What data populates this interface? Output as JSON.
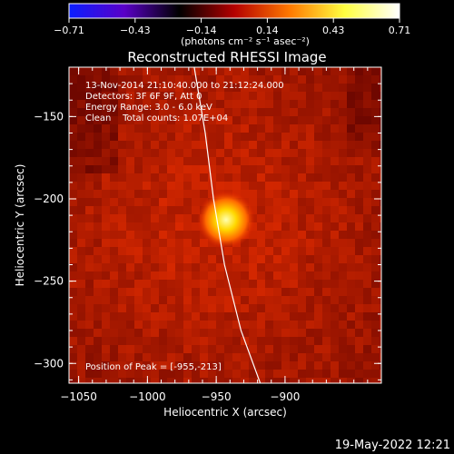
{
  "chart_data": {
    "type": "heatmap",
    "title": "Reconstructed RHESSI Image",
    "xlabel": "Heliocentric X (arcsec)",
    "ylabel": "Heliocentric Y (arcsec)",
    "xlim": [
      -1057,
      -830
    ],
    "ylim": [
      -312,
      -120
    ],
    "x_ticks": [
      {
        "value": -1050,
        "label": "−1050"
      },
      {
        "value": -1000,
        "label": "−1000"
      },
      {
        "value": -950,
        "label": "−950"
      },
      {
        "value": -900,
        "label": "−900"
      }
    ],
    "y_ticks": [
      {
        "value": -150,
        "label": "−150"
      },
      {
        "value": -200,
        "label": "−200"
      },
      {
        "value": -250,
        "label": "−250"
      },
      {
        "value": -300,
        "label": "−300"
      }
    ],
    "colorbar": {
      "range": [
        -0.71,
        0.71
      ],
      "tick_labels": [
        "−0.71",
        "−0.43",
        "−0.14",
        "0.14",
        "0.43",
        "0.71"
      ],
      "unit_label": "(photons cm⁻² s⁻¹ asec⁻²)",
      "colors": [
        "#0a1eff",
        "#5a00c8",
        "#000000",
        "#b40000",
        "#ff7800",
        "#ffff40",
        "#ffffff"
      ]
    },
    "annotations": [
      "13-Nov-2014 21:10:40.000 to 21:12:24.000",
      "Detectors: 3F 6F 9F, Att 0",
      "Energy Range: 3.0 - 6.0 keV",
      "Clean    Total counts: 1.07E+04"
    ],
    "peak": {
      "x": -955,
      "y": -213,
      "label": "Position of Peak = [-955,-213]"
    },
    "limb_curve": [
      [
        -966,
        -120
      ],
      [
        -958,
        -160
      ],
      [
        -952,
        -200
      ],
      [
        -944,
        -240
      ],
      [
        -932,
        -280
      ],
      [
        -918,
        -312
      ]
    ]
  },
  "footer_timestamp": "19-May-2022 12:21"
}
